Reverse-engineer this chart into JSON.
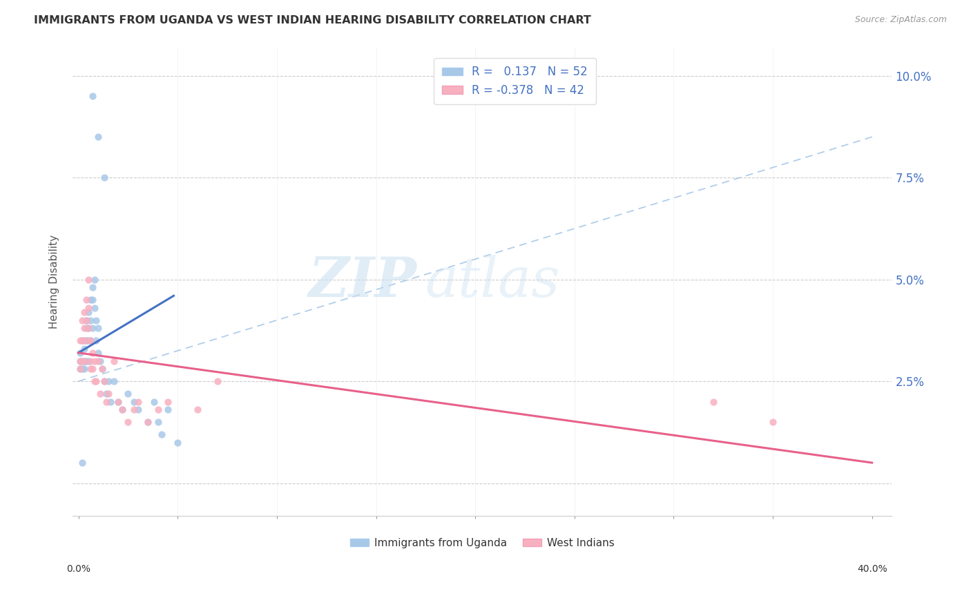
{
  "title": "IMMIGRANTS FROM UGANDA VS WEST INDIAN HEARING DISABILITY CORRELATION CHART",
  "source": "Source: ZipAtlas.com",
  "ylabel": "Hearing Disability",
  "ytick_values": [
    0.0,
    0.025,
    0.05,
    0.075,
    0.1
  ],
  "ytick_labels": [
    "",
    "2.5%",
    "5.0%",
    "7.5%",
    "10.0%"
  ],
  "xtick_values": [
    0.0,
    0.05,
    0.1,
    0.15,
    0.2,
    0.25,
    0.3,
    0.35,
    0.4
  ],
  "xlim": [
    -0.003,
    0.41
  ],
  "ylim": [
    -0.008,
    0.107
  ],
  "legend1_label": "R =   0.137   N = 52",
  "legend2_label": "R = -0.378   N = 42",
  "legend_bottom1": "Immigrants from Uganda",
  "legend_bottom2": "West Indians",
  "color_blue": "#a8c8e8",
  "color_pink": "#f8b0c0",
  "line_blue": "#4472c4",
  "line_pink": "#e8608a",
  "line_dashed_color": "#a8c8e8",
  "watermark_zip": "ZIP",
  "watermark_atlas": "atlas",
  "uganda_x": [
    0.001,
    0.001,
    0.001,
    0.002,
    0.002,
    0.002,
    0.003,
    0.003,
    0.003,
    0.003,
    0.004,
    0.004,
    0.004,
    0.004,
    0.005,
    0.005,
    0.005,
    0.005,
    0.006,
    0.006,
    0.006,
    0.007,
    0.007,
    0.007,
    0.008,
    0.008,
    0.009,
    0.009,
    0.01,
    0.01,
    0.011,
    0.012,
    0.013,
    0.014,
    0.015,
    0.016,
    0.018,
    0.02,
    0.022,
    0.025,
    0.028,
    0.03,
    0.035,
    0.038,
    0.04,
    0.042,
    0.045,
    0.05,
    0.007,
    0.01,
    0.013,
    0.002
  ],
  "uganda_y": [
    0.03,
    0.028,
    0.032,
    0.035,
    0.03,
    0.028,
    0.035,
    0.033,
    0.03,
    0.028,
    0.04,
    0.038,
    0.035,
    0.03,
    0.042,
    0.038,
    0.035,
    0.03,
    0.045,
    0.04,
    0.035,
    0.048,
    0.045,
    0.038,
    0.05,
    0.043,
    0.04,
    0.035,
    0.038,
    0.032,
    0.03,
    0.028,
    0.025,
    0.022,
    0.025,
    0.02,
    0.025,
    0.02,
    0.018,
    0.022,
    0.02,
    0.018,
    0.015,
    0.02,
    0.015,
    0.012,
    0.018,
    0.01,
    0.095,
    0.085,
    0.075,
    0.005
  ],
  "westindian_x": [
    0.001,
    0.001,
    0.001,
    0.002,
    0.002,
    0.002,
    0.003,
    0.003,
    0.003,
    0.004,
    0.004,
    0.004,
    0.005,
    0.005,
    0.005,
    0.006,
    0.006,
    0.006,
    0.007,
    0.007,
    0.008,
    0.008,
    0.009,
    0.01,
    0.011,
    0.012,
    0.013,
    0.014,
    0.015,
    0.018,
    0.02,
    0.022,
    0.025,
    0.028,
    0.03,
    0.035,
    0.04,
    0.045,
    0.06,
    0.07,
    0.32,
    0.35
  ],
  "westindian_y": [
    0.035,
    0.03,
    0.028,
    0.04,
    0.035,
    0.03,
    0.042,
    0.038,
    0.03,
    0.045,
    0.04,
    0.035,
    0.05,
    0.043,
    0.038,
    0.035,
    0.03,
    0.028,
    0.032,
    0.028,
    0.03,
    0.025,
    0.025,
    0.03,
    0.022,
    0.028,
    0.025,
    0.02,
    0.022,
    0.03,
    0.02,
    0.018,
    0.015,
    0.018,
    0.02,
    0.015,
    0.018,
    0.02,
    0.018,
    0.025,
    0.02,
    0.015
  ],
  "blue_line_x0": 0.0,
  "blue_line_x1": 0.048,
  "blue_line_y0": 0.032,
  "blue_line_y1": 0.046,
  "pink_line_x0": 0.0,
  "pink_line_x1": 0.4,
  "pink_line_y0": 0.032,
  "pink_line_y1": 0.005,
  "dashed_line_x0": 0.0,
  "dashed_line_x1": 0.4,
  "dashed_line_y0": 0.025,
  "dashed_line_y1": 0.085
}
